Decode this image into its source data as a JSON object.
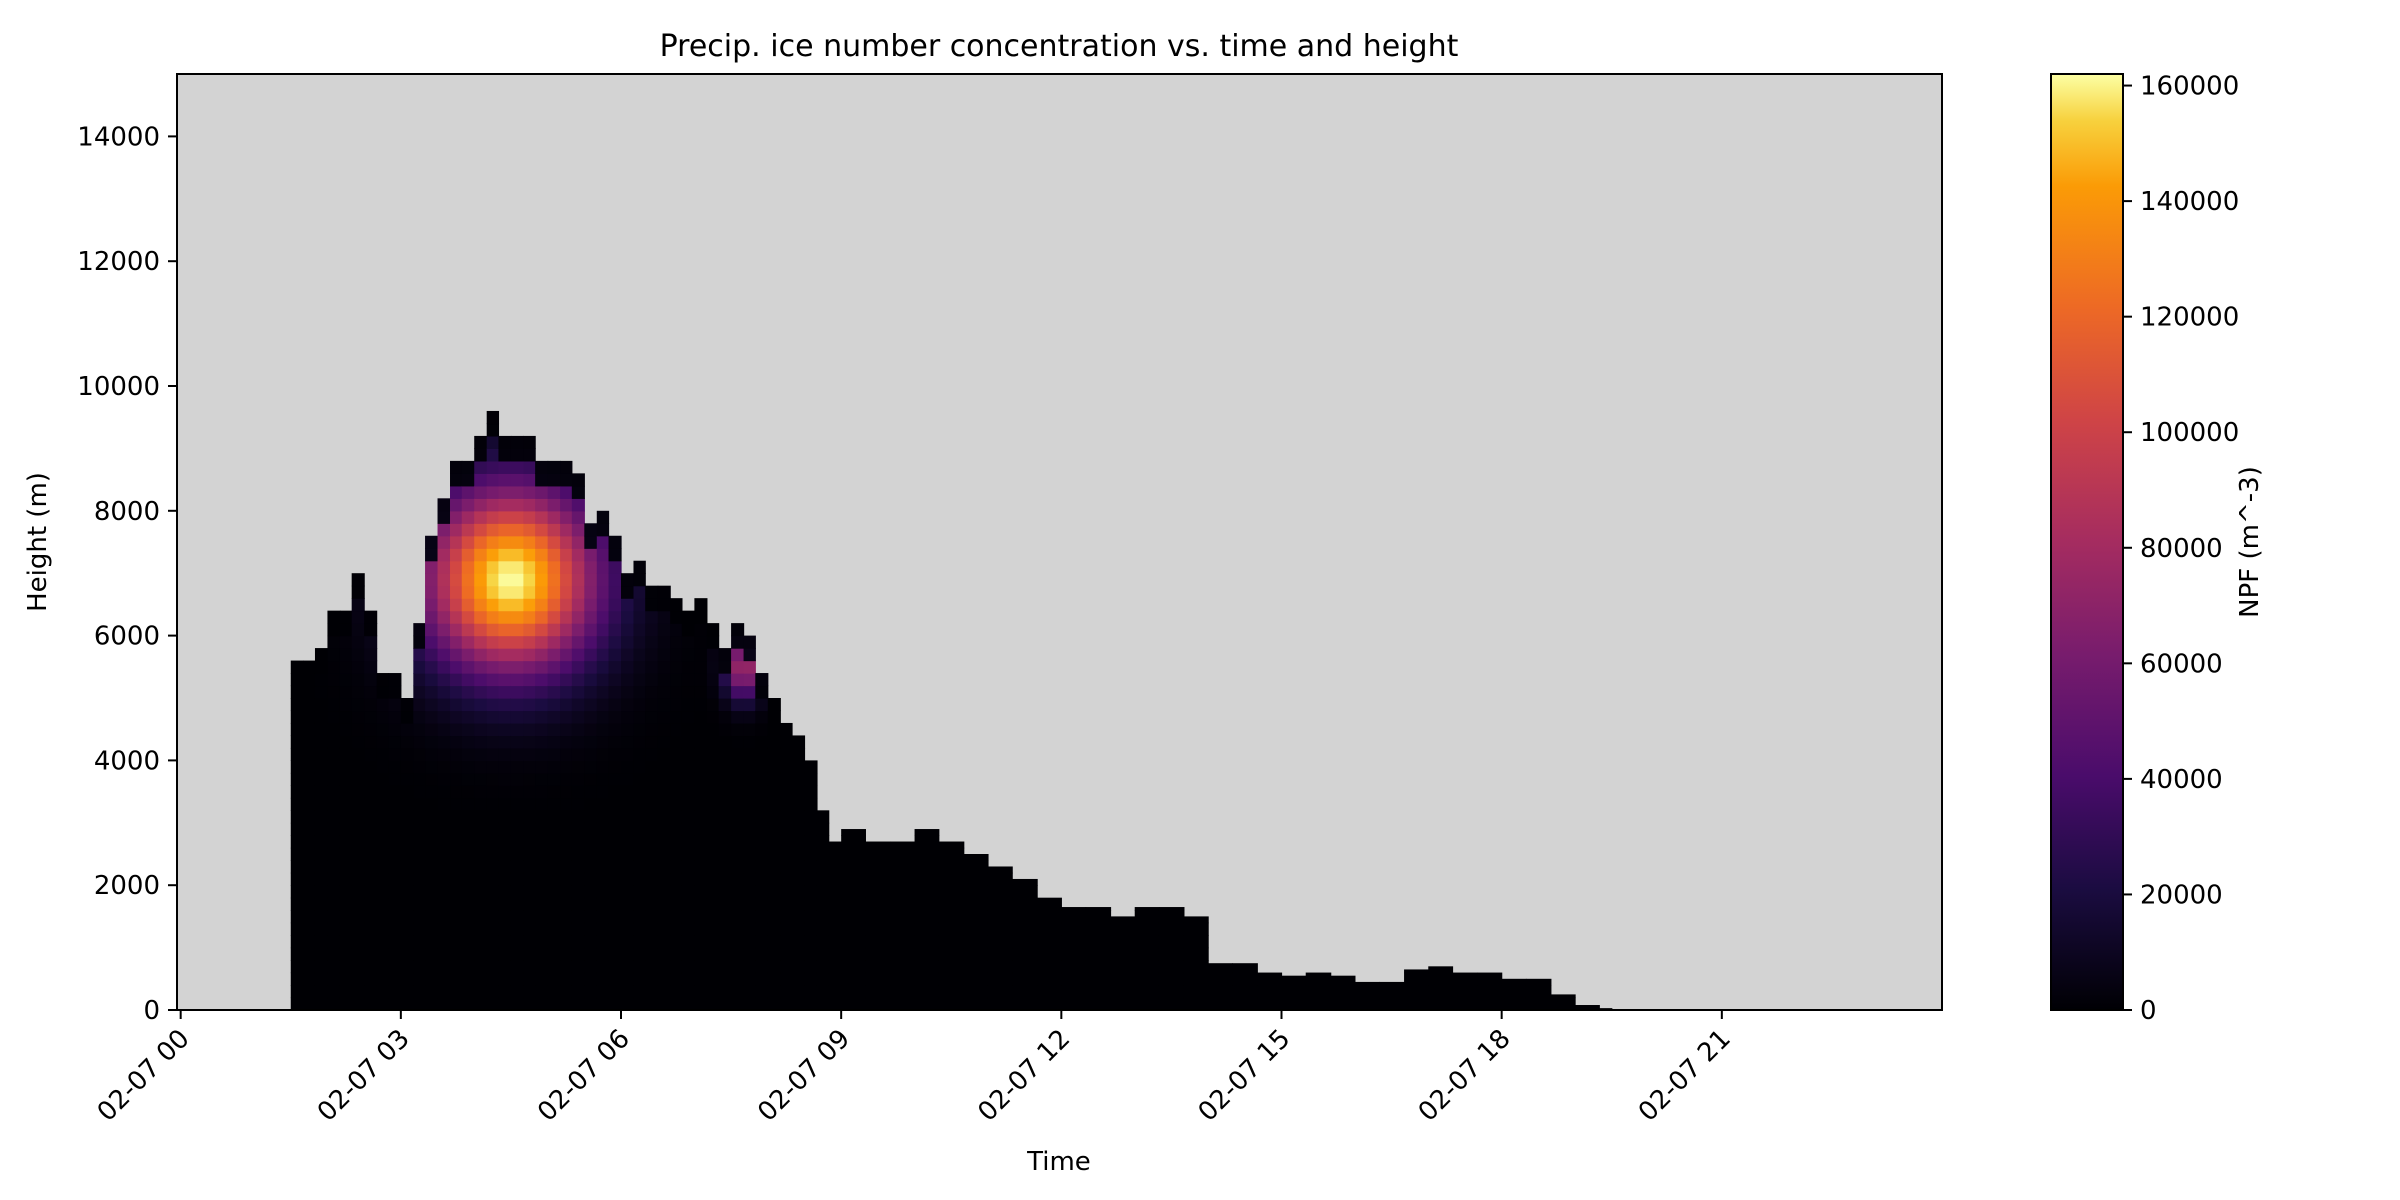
{
  "chart_data": {
    "type": "heatmap",
    "title": "Precip. ice number concentration vs. time and height",
    "xlabel": "Time",
    "ylabel": "Height (m)",
    "x_ticks": [
      "02-07 00",
      "02-07 03",
      "02-07 06",
      "02-07 09",
      "02-07 12",
      "02-07 15",
      "02-07 18",
      "02-07 21"
    ],
    "x_tick_hours": [
      0,
      3,
      6,
      9,
      12,
      15,
      18,
      21
    ],
    "x_range_hours": [
      -0.05,
      24
    ],
    "y_ticks": [
      0,
      2000,
      4000,
      6000,
      8000,
      10000,
      12000,
      14000
    ],
    "ylim": [
      0,
      15000
    ],
    "background": "#d3d3d3",
    "colormap": "inferno",
    "colorbar": {
      "label": "NPF (m^-3)",
      "ticks": [
        0,
        20000,
        40000,
        60000,
        80000,
        100000,
        120000,
        140000,
        160000
      ],
      "range": [
        0,
        162000
      ]
    },
    "cloud_top_profile": {
      "note_hours": "x in hours after 02-07 00, y height in m",
      "x": [
        1.5,
        1.67,
        1.83,
        2.0,
        2.17,
        2.33,
        2.5,
        2.67,
        2.83,
        3.0,
        3.17,
        3.33,
        3.5,
        3.67,
        3.83,
        4.0,
        4.17,
        4.33,
        4.5,
        4.67,
        4.83,
        5.0,
        5.17,
        5.33,
        5.5,
        5.67,
        5.83,
        6.0,
        6.17,
        6.33,
        6.5,
        6.67,
        6.83,
        7.0,
        7.17,
        7.33,
        7.5,
        7.67,
        7.83,
        8.0,
        8.17,
        8.33,
        8.5,
        8.67,
        8.83,
        9.0,
        9.33,
        9.67,
        10.0,
        10.33,
        10.67,
        11.0,
        11.33,
        11.67,
        12.0,
        12.33,
        12.67,
        13.0,
        13.33,
        13.67,
        14.0,
        14.33,
        14.67,
        15.0,
        15.33,
        15.67,
        16.0,
        16.33,
        16.67,
        17.0,
        17.33,
        17.67,
        18.0,
        18.33,
        18.67,
        19.0,
        19.33,
        19.5
      ],
      "y": [
        5600,
        5600,
        5800,
        6400,
        6400,
        7000,
        6400,
        5400,
        5400,
        5000,
        6200,
        7600,
        8200,
        8800,
        8800,
        9200,
        9600,
        9200,
        9200,
        9200,
        8800,
        8800,
        8800,
        8600,
        7800,
        8000,
        7600,
        7000,
        7200,
        6800,
        6800,
        6600,
        6400,
        6600,
        6200,
        5800,
        6200,
        6000,
        5400,
        5000,
        4600,
        4400,
        4000,
        3200,
        2700,
        2900,
        2700,
        2700,
        2900,
        2700,
        2500,
        2300,
        2100,
        1800,
        1650,
        1650,
        1500,
        1650,
        1650,
        1500,
        750,
        750,
        600,
        550,
        600,
        550,
        450,
        450,
        650,
        700,
        600,
        600,
        500,
        500,
        250,
        80,
        30,
        0
      ]
    },
    "annotations": {
      "peak": {
        "x_hours": 4.5,
        "y_m": 6900,
        "value": 162000
      },
      "secondary_max": {
        "x_hours": 7.67,
        "y_m": 5500,
        "value": 80000
      }
    }
  }
}
